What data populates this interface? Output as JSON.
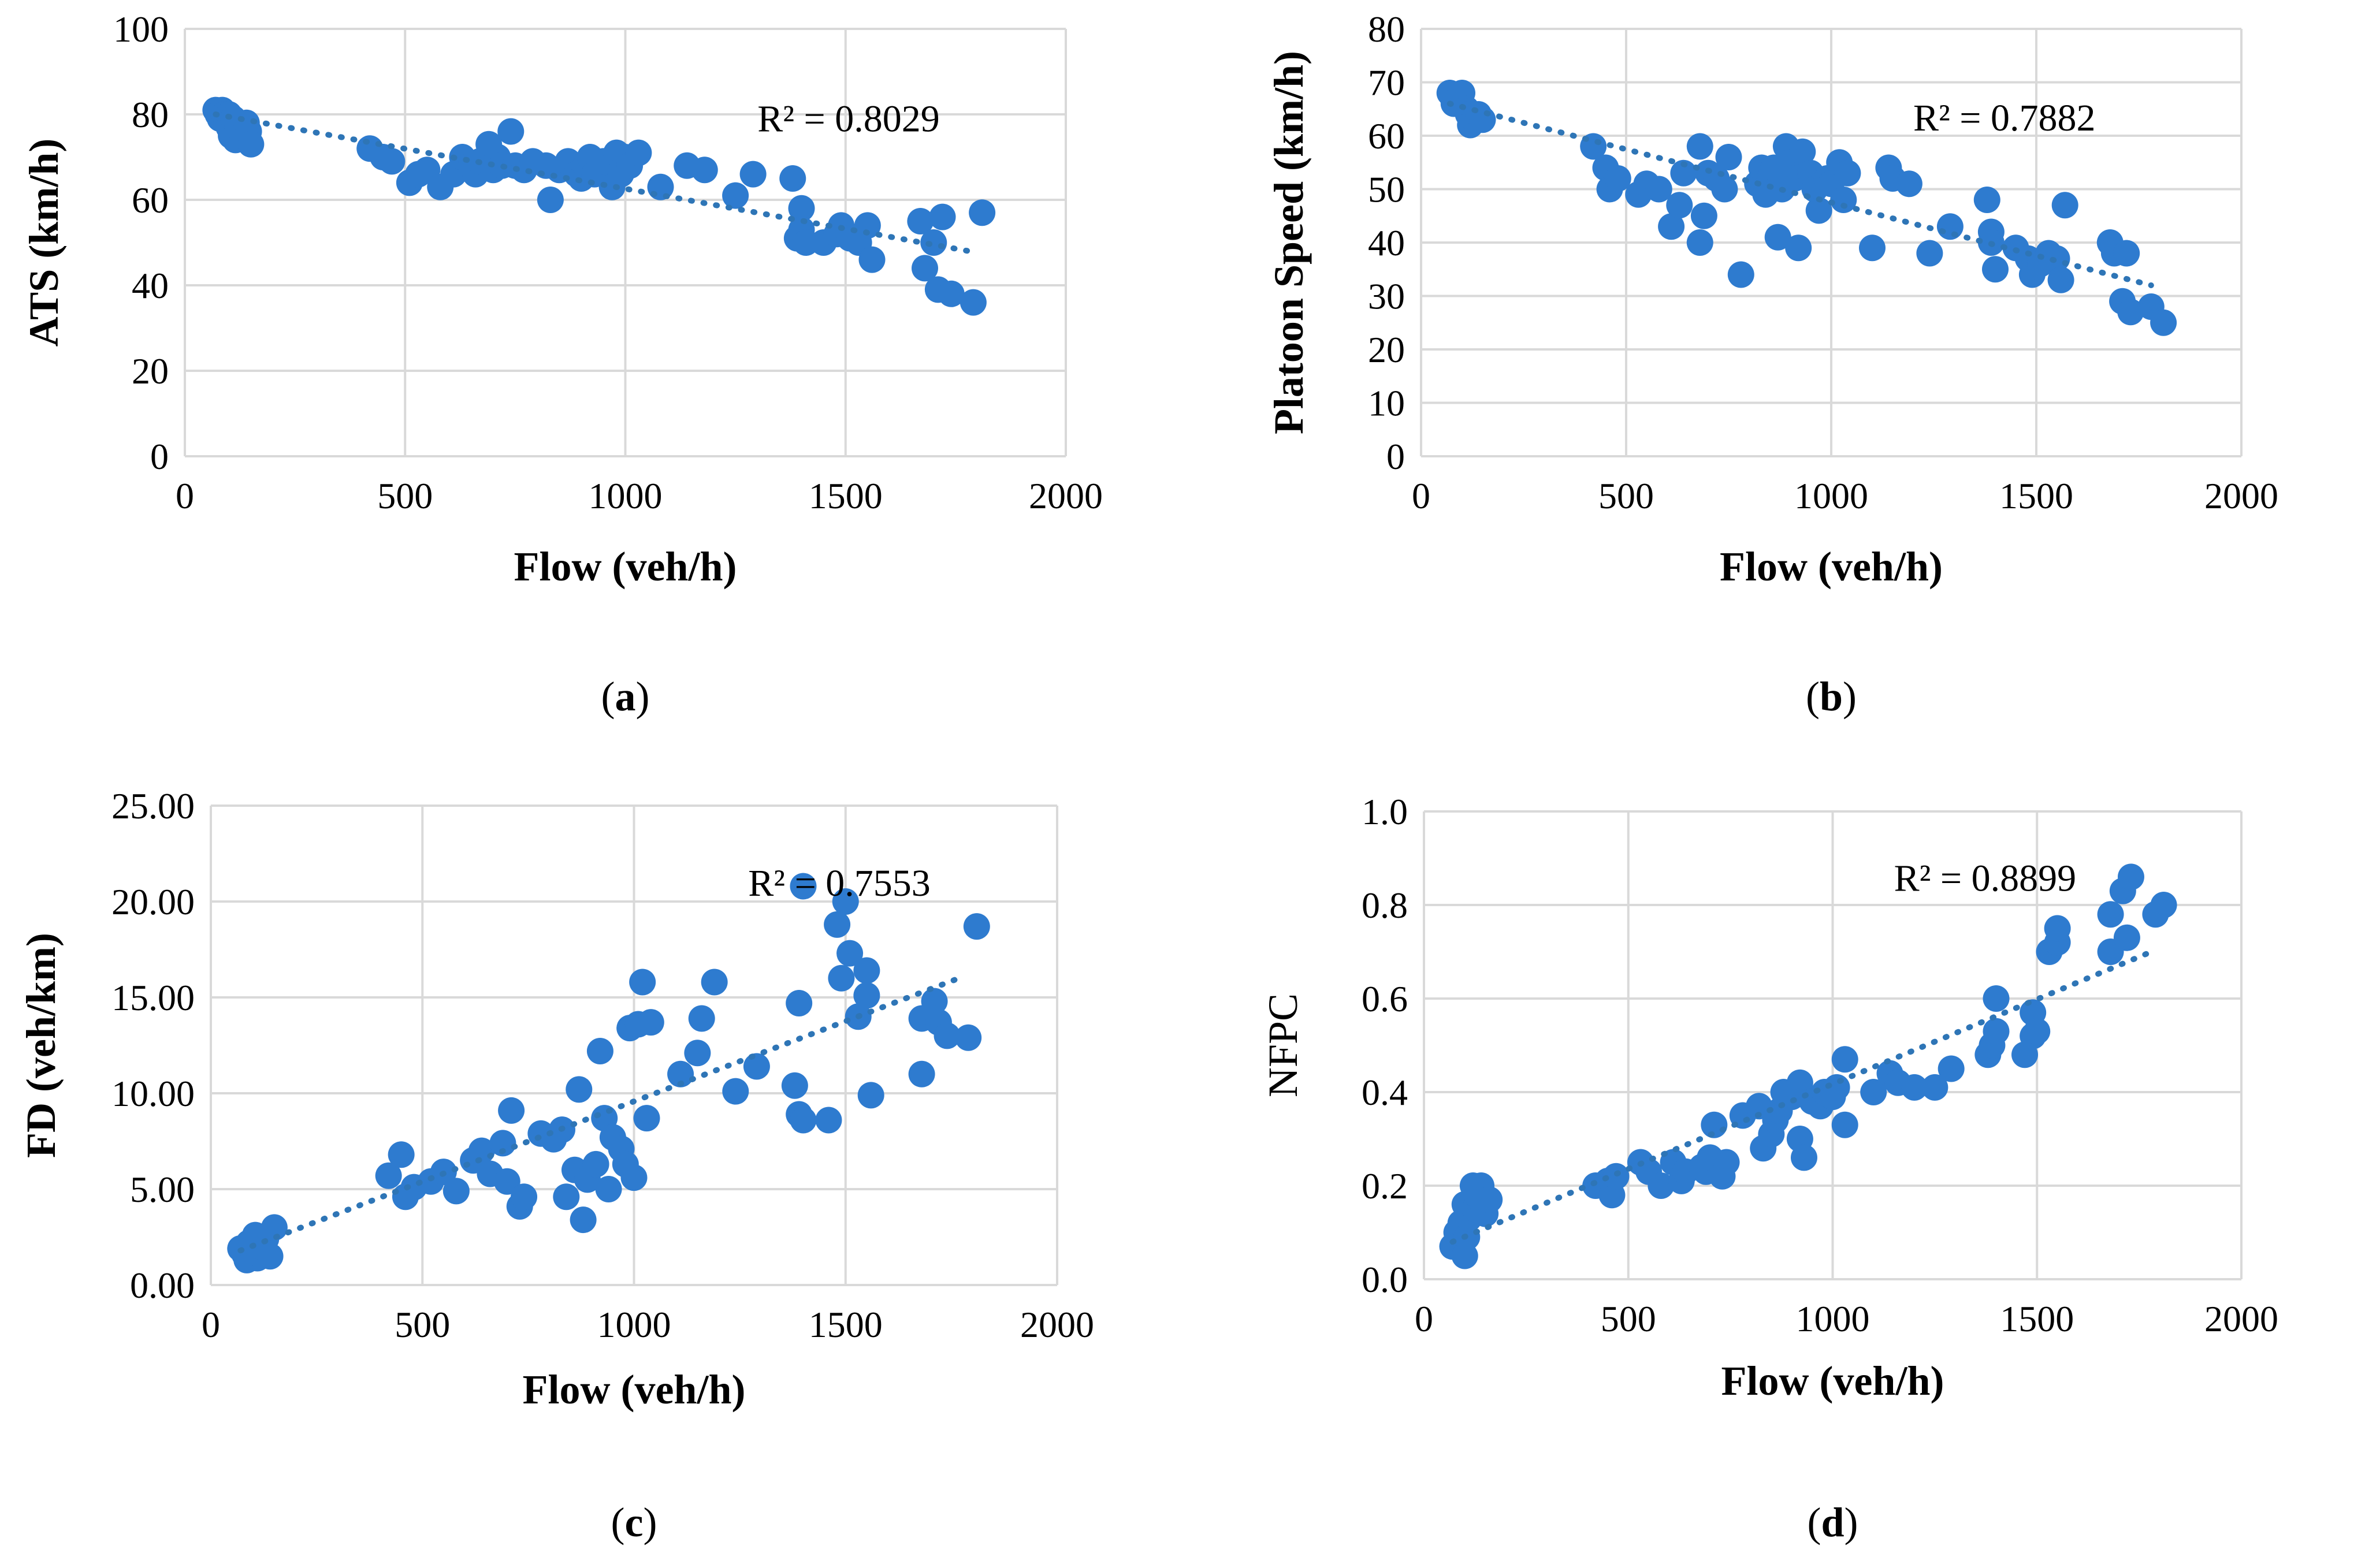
{
  "chart_data": [
    {
      "id": "a",
      "type": "scatter",
      "panel_label": "a",
      "xlabel": "Flow (veh/h)",
      "ylabel": "ATS (km/h)",
      "ylabel_bold": true,
      "xlim": [
        0,
        2000
      ],
      "ylim": [
        0,
        100
      ],
      "xticks": [
        0,
        500,
        1000,
        1500,
        2000
      ],
      "yticks": [
        0,
        20,
        40,
        60,
        80,
        100
      ],
      "ytick_decimals": 0,
      "r2_text": "R² = 0.8029",
      "r2_at": [
        1300,
        76
      ],
      "trendline": {
        "x": [
          70,
          1780
        ],
        "y": [
          80,
          48
        ]
      },
      "points": [
        [
          70,
          81
        ],
        [
          75,
          80
        ],
        [
          80,
          79
        ],
        [
          85,
          81
        ],
        [
          90,
          80
        ],
        [
          95,
          78
        ],
        [
          100,
          80
        ],
        [
          100,
          77
        ],
        [
          105,
          75
        ],
        [
          110,
          79
        ],
        [
          115,
          74
        ],
        [
          120,
          77
        ],
        [
          130,
          76
        ],
        [
          140,
          78
        ],
        [
          145,
          76
        ],
        [
          150,
          73
        ],
        [
          420,
          72
        ],
        [
          450,
          70
        ],
        [
          470,
          69
        ],
        [
          510,
          64
        ],
        [
          530,
          66
        ],
        [
          550,
          67
        ],
        [
          580,
          63
        ],
        [
          610,
          66
        ],
        [
          630,
          70
        ],
        [
          650,
          68
        ],
        [
          660,
          66
        ],
        [
          670,
          69
        ],
        [
          690,
          73
        ],
        [
          700,
          67
        ],
        [
          710,
          70
        ],
        [
          720,
          68
        ],
        [
          740,
          76
        ],
        [
          750,
          68
        ],
        [
          770,
          67
        ],
        [
          790,
          69
        ],
        [
          820,
          68
        ],
        [
          830,
          60
        ],
        [
          850,
          67
        ],
        [
          870,
          69
        ],
        [
          890,
          66
        ],
        [
          900,
          65
        ],
        [
          910,
          68
        ],
        [
          920,
          70
        ],
        [
          930,
          66
        ],
        [
          950,
          69
        ],
        [
          970,
          63
        ],
        [
          980,
          71
        ],
        [
          990,
          66
        ],
        [
          1000,
          70
        ],
        [
          1010,
          68
        ],
        [
          1030,
          71
        ],
        [
          1080,
          63
        ],
        [
          1140,
          68
        ],
        [
          1180,
          67
        ],
        [
          1250,
          61
        ],
        [
          1290,
          66
        ],
        [
          1380,
          65
        ],
        [
          1390,
          51
        ],
        [
          1400,
          58
        ],
        [
          1400,
          53
        ],
        [
          1410,
          50
        ],
        [
          1450,
          50
        ],
        [
          1480,
          52
        ],
        [
          1490,
          54
        ],
        [
          1510,
          51
        ],
        [
          1530,
          50
        ],
        [
          1550,
          54
        ],
        [
          1560,
          46
        ],
        [
          1670,
          55
        ],
        [
          1680,
          44
        ],
        [
          1700,
          50
        ],
        [
          1710,
          39
        ],
        [
          1720,
          56
        ],
        [
          1740,
          38
        ],
        [
          1790,
          36
        ],
        [
          1810,
          57
        ]
      ]
    },
    {
      "id": "b",
      "type": "scatter",
      "panel_label": "b",
      "xlabel": "Flow (veh/h)",
      "ylabel": "Platoon Speed (km/h)",
      "ylabel_bold": true,
      "xlim": [
        0,
        2000
      ],
      "ylim": [
        0,
        80
      ],
      "xticks": [
        0,
        500,
        1000,
        1500,
        2000
      ],
      "yticks": [
        0,
        10,
        20,
        30,
        40,
        50,
        60,
        70,
        80
      ],
      "ytick_decimals": 0,
      "r2_text": "R² = 0.7882",
      "r2_at": [
        1200,
        61
      ],
      "trendline": {
        "x": [
          70,
          1780
        ],
        "y": [
          66,
          32
        ]
      },
      "points": [
        [
          70,
          68
        ],
        [
          80,
          66
        ],
        [
          90,
          67
        ],
        [
          100,
          68
        ],
        [
          110,
          65
        ],
        [
          115,
          64
        ],
        [
          120,
          62
        ],
        [
          130,
          63
        ],
        [
          140,
          64
        ],
        [
          150,
          63
        ],
        [
          420,
          58
        ],
        [
          450,
          54
        ],
        [
          460,
          50
        ],
        [
          480,
          52
        ],
        [
          530,
          49
        ],
        [
          550,
          51
        ],
        [
          580,
          50
        ],
        [
          610,
          43
        ],
        [
          630,
          47
        ],
        [
          640,
          53
        ],
        [
          680,
          40
        ],
        [
          680,
          58
        ],
        [
          690,
          45
        ],
        [
          700,
          53
        ],
        [
          720,
          52
        ],
        [
          740,
          50
        ],
        [
          750,
          56
        ],
        [
          780,
          34
        ],
        [
          820,
          51
        ],
        [
          830,
          54
        ],
        [
          840,
          49
        ],
        [
          850,
          52
        ],
        [
          860,
          54
        ],
        [
          870,
          41
        ],
        [
          880,
          50
        ],
        [
          890,
          58
        ],
        [
          900,
          55
        ],
        [
          910,
          52
        ],
        [
          920,
          39
        ],
        [
          930,
          57
        ],
        [
          950,
          53
        ],
        [
          960,
          50
        ],
        [
          970,
          46
        ],
        [
          990,
          52
        ],
        [
          1000,
          51
        ],
        [
          1020,
          55
        ],
        [
          1030,
          48
        ],
        [
          1040,
          53
        ],
        [
          1100,
          39
        ],
        [
          1140,
          54
        ],
        [
          1150,
          52
        ],
        [
          1190,
          51
        ],
        [
          1240,
          38
        ],
        [
          1290,
          43
        ],
        [
          1380,
          48
        ],
        [
          1390,
          42
        ],
        [
          1390,
          40
        ],
        [
          1400,
          35
        ],
        [
          1450,
          39
        ],
        [
          1480,
          37
        ],
        [
          1490,
          34
        ],
        [
          1510,
          36
        ],
        [
          1530,
          38
        ],
        [
          1550,
          37
        ],
        [
          1560,
          33
        ],
        [
          1570,
          47
        ],
        [
          1680,
          40
        ],
        [
          1690,
          38
        ],
        [
          1710,
          29
        ],
        [
          1720,
          38
        ],
        [
          1730,
          27
        ],
        [
          1780,
          28
        ],
        [
          1810,
          25
        ]
      ]
    },
    {
      "id": "c",
      "type": "scatter",
      "panel_label": "c",
      "xlabel": "Flow (veh/h)",
      "ylabel": "FD (veh/km)",
      "ylabel_bold": true,
      "xlim": [
        0,
        2000
      ],
      "ylim": [
        0,
        25
      ],
      "xticks": [
        0,
        500,
        1000,
        1500,
        2000
      ],
      "yticks": [
        0,
        5,
        10,
        15,
        20,
        25
      ],
      "ytick_decimals": 2,
      "r2_text": "R² = 0.7553",
      "r2_at": [
        1270,
        20.3
      ],
      "trendline": {
        "x": [
          70,
          1780
        ],
        "y": [
          1.8,
          16.1
        ]
      },
      "points": [
        [
          70,
          1.9
        ],
        [
          80,
          1.6
        ],
        [
          85,
          1.3
        ],
        [
          90,
          2.2
        ],
        [
          100,
          1.8
        ],
        [
          105,
          2.6
        ],
        [
          110,
          1.4
        ],
        [
          115,
          1.6
        ],
        [
          120,
          2.0
        ],
        [
          130,
          2.4
        ],
        [
          140,
          1.5
        ],
        [
          150,
          3.0
        ],
        [
          420,
          5.7
        ],
        [
          450,
          6.8
        ],
        [
          460,
          4.6
        ],
        [
          480,
          5.1
        ],
        [
          520,
          5.4
        ],
        [
          550,
          5.9
        ],
        [
          580,
          4.9
        ],
        [
          620,
          6.5
        ],
        [
          640,
          7.0
        ],
        [
          660,
          5.8
        ],
        [
          690,
          7.4
        ],
        [
          700,
          5.4
        ],
        [
          710,
          9.1
        ],
        [
          730,
          4.1
        ],
        [
          740,
          4.6
        ],
        [
          780,
          7.9
        ],
        [
          810,
          7.6
        ],
        [
          830,
          8.1
        ],
        [
          840,
          4.6
        ],
        [
          860,
          6.0
        ],
        [
          870,
          10.2
        ],
        [
          880,
          3.4
        ],
        [
          890,
          5.5
        ],
        [
          910,
          6.3
        ],
        [
          920,
          12.2
        ],
        [
          930,
          8.7
        ],
        [
          940,
          5.0
        ],
        [
          950,
          7.7
        ],
        [
          970,
          7.1
        ],
        [
          980,
          6.3
        ],
        [
          990,
          13.4
        ],
        [
          1000,
          5.6
        ],
        [
          1010,
          13.6
        ],
        [
          1020,
          15.8
        ],
        [
          1030,
          8.7
        ],
        [
          1040,
          13.7
        ],
        [
          1110,
          11.0
        ],
        [
          1150,
          12.1
        ],
        [
          1160,
          13.9
        ],
        [
          1190,
          15.8
        ],
        [
          1240,
          10.1
        ],
        [
          1290,
          11.4
        ],
        [
          1380,
          10.4
        ],
        [
          1390,
          8.9
        ],
        [
          1390,
          14.7
        ],
        [
          1400,
          8.6
        ],
        [
          1400,
          20.8
        ],
        [
          1460,
          8.6
        ],
        [
          1480,
          18.8
        ],
        [
          1490,
          16.0
        ],
        [
          1500,
          20.0
        ],
        [
          1510,
          17.3
        ],
        [
          1530,
          14.0
        ],
        [
          1550,
          16.4
        ],
        [
          1550,
          15.1
        ],
        [
          1560,
          9.9
        ],
        [
          1680,
          11.0
        ],
        [
          1680,
          13.9
        ],
        [
          1710,
          14.8
        ],
        [
          1720,
          13.7
        ],
        [
          1740,
          13.0
        ],
        [
          1790,
          12.9
        ],
        [
          1810,
          18.7
        ]
      ]
    },
    {
      "id": "d",
      "type": "scatter",
      "panel_label": "d",
      "xlabel": "Flow (veh/h)",
      "ylabel": "NFPC",
      "ylabel_bold": false,
      "xlim": [
        0,
        2000
      ],
      "ylim": [
        0,
        1
      ],
      "xticks": [
        0,
        500,
        1000,
        1500,
        2000
      ],
      "yticks": [
        0,
        0.2,
        0.4,
        0.6,
        0.8,
        1.0
      ],
      "ytick_decimals": 1,
      "r2_text": "R² = 0.8899",
      "r2_at": [
        1150,
        0.83
      ],
      "trendline": {
        "x": [
          70,
          1780
        ],
        "y": [
          0.08,
          0.7
        ]
      },
      "points": [
        [
          70,
          0.07
        ],
        [
          80,
          0.1
        ],
        [
          90,
          0.12
        ],
        [
          100,
          0.05
        ],
        [
          100,
          0.16
        ],
        [
          105,
          0.09
        ],
        [
          110,
          0.13
        ],
        [
          120,
          0.2
        ],
        [
          125,
          0.15
        ],
        [
          130,
          0.18
        ],
        [
          140,
          0.2
        ],
        [
          145,
          0.16
        ],
        [
          150,
          0.14
        ],
        [
          160,
          0.17
        ],
        [
          420,
          0.2
        ],
        [
          450,
          0.21
        ],
        [
          460,
          0.18
        ],
        [
          470,
          0.22
        ],
        [
          530,
          0.25
        ],
        [
          550,
          0.23
        ],
        [
          580,
          0.2
        ],
        [
          610,
          0.25
        ],
        [
          630,
          0.21
        ],
        [
          640,
          0.23
        ],
        [
          680,
          0.24
        ],
        [
          690,
          0.23
        ],
        [
          700,
          0.26
        ],
        [
          710,
          0.33
        ],
        [
          730,
          0.22
        ],
        [
          740,
          0.25
        ],
        [
          780,
          0.35
        ],
        [
          820,
          0.37
        ],
        [
          830,
          0.28
        ],
        [
          850,
          0.31
        ],
        [
          860,
          0.34
        ],
        [
          870,
          0.36
        ],
        [
          880,
          0.4
        ],
        [
          900,
          0.39
        ],
        [
          920,
          0.42
        ],
        [
          920,
          0.3
        ],
        [
          930,
          0.26
        ],
        [
          950,
          0.38
        ],
        [
          970,
          0.37
        ],
        [
          980,
          0.4
        ],
        [
          1000,
          0.39
        ],
        [
          1010,
          0.41
        ],
        [
          1030,
          0.33
        ],
        [
          1030,
          0.47
        ],
        [
          1100,
          0.4
        ],
        [
          1140,
          0.44
        ],
        [
          1160,
          0.42
        ],
        [
          1200,
          0.41
        ],
        [
          1250,
          0.41
        ],
        [
          1290,
          0.45
        ],
        [
          1380,
          0.48
        ],
        [
          1390,
          0.5
        ],
        [
          1400,
          0.6
        ],
        [
          1400,
          0.53
        ],
        [
          1470,
          0.48
        ],
        [
          1490,
          0.52
        ],
        [
          1490,
          0.57
        ],
        [
          1500,
          0.53
        ],
        [
          1530,
          0.7
        ],
        [
          1550,
          0.72
        ],
        [
          1550,
          0.75
        ],
        [
          1680,
          0.7
        ],
        [
          1680,
          0.78
        ],
        [
          1710,
          0.83
        ],
        [
          1720,
          0.73
        ],
        [
          1730,
          0.86
        ],
        [
          1790,
          0.78
        ],
        [
          1810,
          0.8
        ]
      ]
    }
  ]
}
